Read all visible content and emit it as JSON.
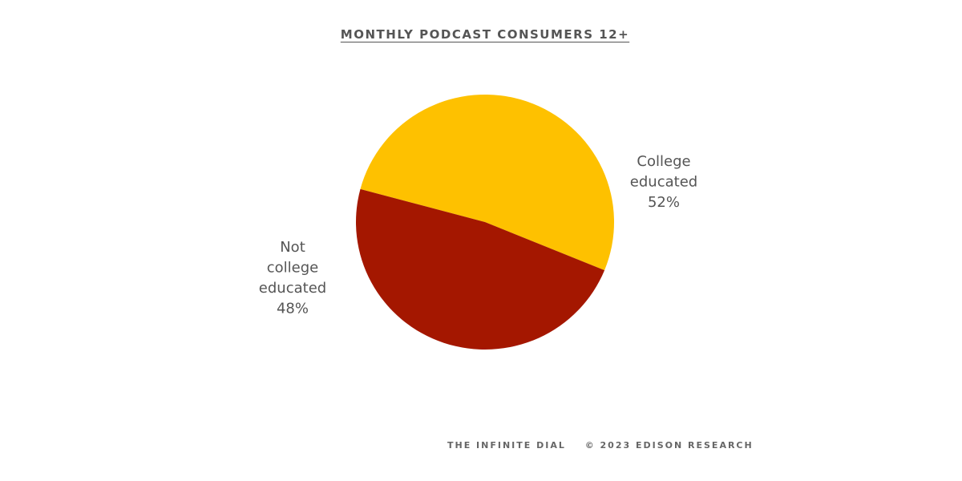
{
  "chart_data": {
    "type": "pie",
    "title": "MONTHLY PODCAST CONSUMERS 12+",
    "slices": [
      {
        "label_lines": [
          "College",
          "educated"
        ],
        "value_label": "52%",
        "value": 52,
        "color": "#FEC100"
      },
      {
        "label_lines": [
          "Not",
          "college",
          "educated"
        ],
        "value_label": "48%",
        "value": 48,
        "color": "#A41700"
      }
    ]
  },
  "footer": {
    "source": "THE INFINITE DIAL",
    "copyright": "© 2023 EDISON RESEARCH"
  }
}
